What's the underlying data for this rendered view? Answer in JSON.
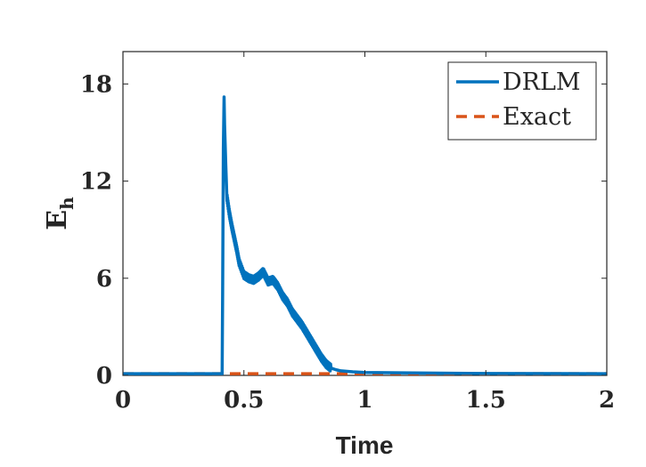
{
  "chart_data": {
    "type": "line",
    "xlabel": "Time",
    "ylabel": "E",
    "ylabel_subscript": "h",
    "xlim": [
      0,
      2
    ],
    "ylim": [
      0,
      20
    ],
    "xticks": [
      0,
      0.5,
      1,
      1.5,
      2
    ],
    "xtick_labels": [
      "0",
      "0.5",
      "1",
      "1.5",
      "2"
    ],
    "yticks": [
      0,
      6,
      12,
      18
    ],
    "ytick_labels": [
      "0",
      "6",
      "12",
      "18"
    ],
    "grid": false,
    "legend_position": "top-right",
    "series": [
      {
        "name": "DRLM",
        "color": "#0072BD",
        "style": "solid",
        "x": [
          0,
          0.2,
          0.41,
          0.412,
          0.415,
          0.418,
          0.42,
          0.425,
          0.43,
          0.44,
          0.45,
          0.46,
          0.47,
          0.48,
          0.5,
          0.52,
          0.54,
          0.56,
          0.58,
          0.6,
          0.62,
          0.64,
          0.66,
          0.68,
          0.7,
          0.72,
          0.74,
          0.76,
          0.78,
          0.8,
          0.82,
          0.84,
          0.86,
          0.88,
          0.9,
          0.95,
          1.0,
          1.2,
          1.5,
          2.0
        ],
        "y": [
          0.1,
          0.1,
          0.1,
          5.0,
          14.0,
          17.2,
          15.5,
          13.0,
          11.0,
          10.0,
          9.2,
          8.5,
          7.8,
          7.0,
          6.2,
          6.0,
          5.9,
          6.1,
          6.4,
          5.8,
          5.9,
          5.5,
          4.9,
          4.5,
          3.9,
          3.5,
          3.1,
          2.6,
          2.1,
          1.6,
          1.1,
          0.7,
          0.45,
          0.35,
          0.28,
          0.22,
          0.18,
          0.15,
          0.12,
          0.1
        ]
      },
      {
        "name": "Exact",
        "color": "#D95319",
        "style": "dashed",
        "x": [
          0,
          2
        ],
        "y": [
          0.1,
          0.1
        ]
      }
    ]
  }
}
